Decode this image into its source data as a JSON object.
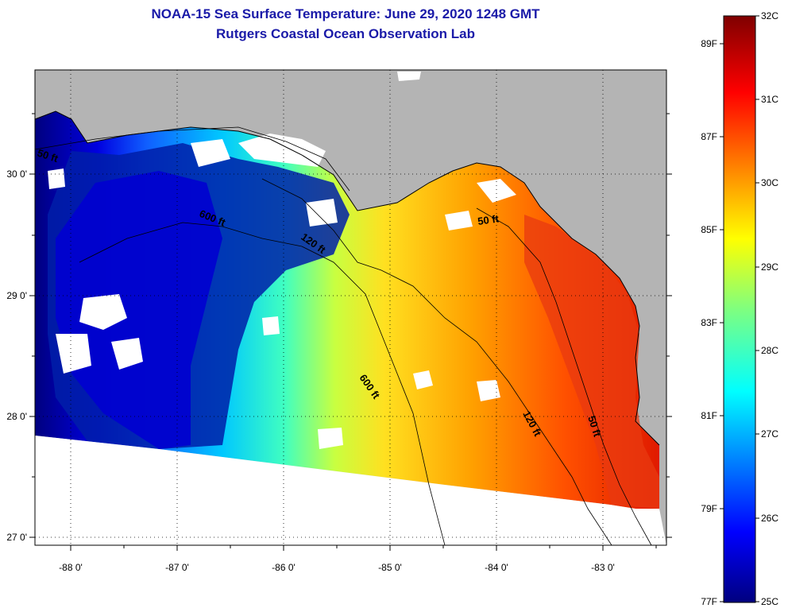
{
  "header": {
    "title": "NOAA-15 Sea Surface Temperature:  June 29, 2020 1248 GMT",
    "subtitle": "Rutgers Coastal Ocean Observation Lab"
  },
  "map": {
    "lon_labels": [
      "-88 0'",
      "-87 0'",
      "-86 0'",
      "-85 0'",
      "-84 0'",
      "-83 0'"
    ],
    "lat_labels": [
      "30 0'",
      "29 0'",
      "28 0'",
      "27 0'"
    ],
    "contours": [
      "50 ft",
      "600 ft",
      "120 ft",
      "50 ft",
      "600 ft",
      "120 ft",
      "50 ft"
    ],
    "land_color": "#b4b4b4",
    "cloud_color": "#ffffff"
  },
  "colorbar": {
    "celsius_labels": [
      "32C",
      "31C",
      "30C",
      "29C",
      "28C",
      "27C",
      "26C",
      "25C"
    ],
    "fahrenheit_labels": [
      "89F",
      "87F",
      "85F",
      "83F",
      "81F",
      "79F",
      "77F"
    ],
    "scale_colors": [
      "#00007f",
      "#0000d8",
      "#0070ff",
      "#00d8ff",
      "#30ffcf",
      "#c0ff40",
      "#ffd800",
      "#ff8000",
      "#ff1000",
      "#b00000",
      "#7f0000"
    ]
  }
}
